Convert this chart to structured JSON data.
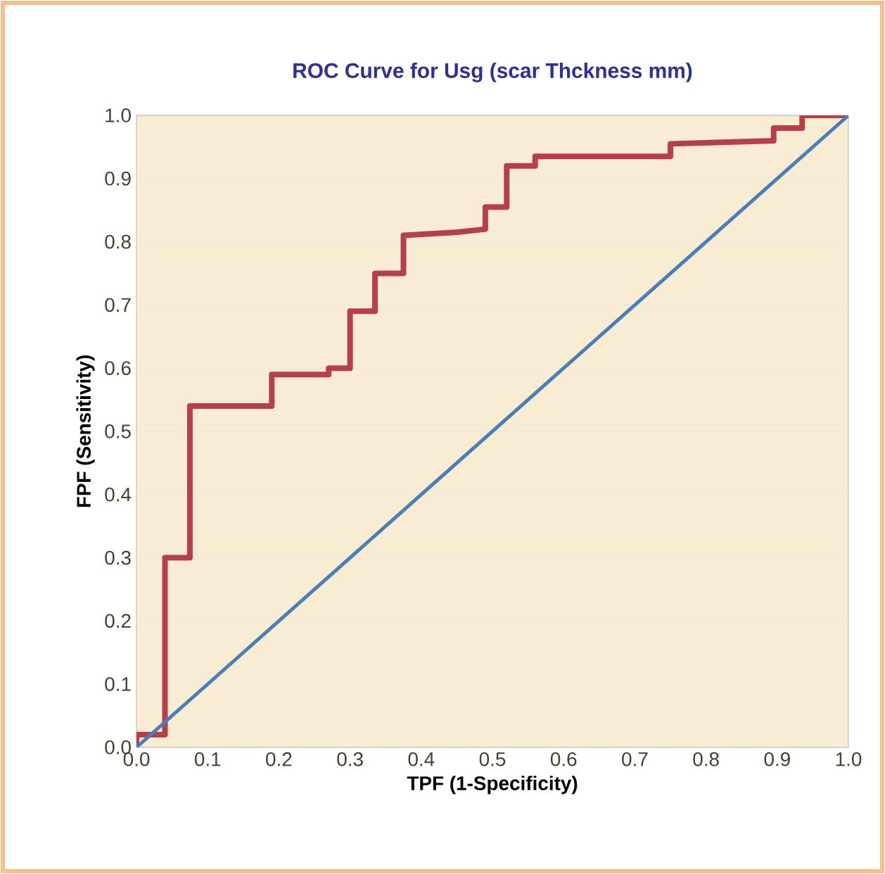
{
  "chart_data": {
    "type": "line",
    "title": "ROC Curve for Usg (scar Thckness mm)",
    "xlabel": "TPF (1-Specificity)",
    "ylabel": "FPF (Sensitivity)",
    "xlim": [
      0,
      1
    ],
    "ylim": [
      0,
      1
    ],
    "xticks": [
      {
        "value": 0,
        "label": "0.0"
      },
      0.1,
      0.2,
      0.3,
      0.4,
      0.5,
      0.6,
      0.7,
      0.8,
      0.9,
      {
        "value": 1,
        "label": "1.0"
      }
    ],
    "yticks": [
      {
        "value": 0,
        "label": "0.0"
      },
      0.1,
      0.2,
      0.3,
      0.4,
      0.5,
      0.6,
      0.7,
      0.8,
      0.9,
      {
        "value": 1,
        "label": "1.0"
      }
    ],
    "grid": "y",
    "legend": false,
    "marker": "none",
    "line_style": "solid",
    "series": [
      {
        "color": "#b5404a",
        "x": [
          0,
          0,
          0.04,
          0.04,
          0.075,
          0.075,
          0.19,
          0.19,
          0.27,
          0.27,
          0.3,
          0.3,
          0.335,
          0.335,
          0.375,
          0.375,
          0.45,
          0.49,
          0.49,
          0.52,
          0.52,
          0.56,
          0.56,
          0.75,
          0.75,
          0.895,
          0.895,
          0.935,
          0.935,
          1.0
        ],
        "values": [
          0,
          0.02,
          0.02,
          0.3,
          0.3,
          0.54,
          0.54,
          0.59,
          0.59,
          0.6,
          0.6,
          0.69,
          0.69,
          0.75,
          0.75,
          0.81,
          0.815,
          0.82,
          0.855,
          0.855,
          0.92,
          0.92,
          0.935,
          0.935,
          0.955,
          0.96,
          0.98,
          0.98,
          1.0,
          1.0
        ]
      },
      {
        "color": "#4a7ebb",
        "x": [
          0,
          1
        ],
        "values": [
          0,
          1
        ]
      }
    ]
  }
}
